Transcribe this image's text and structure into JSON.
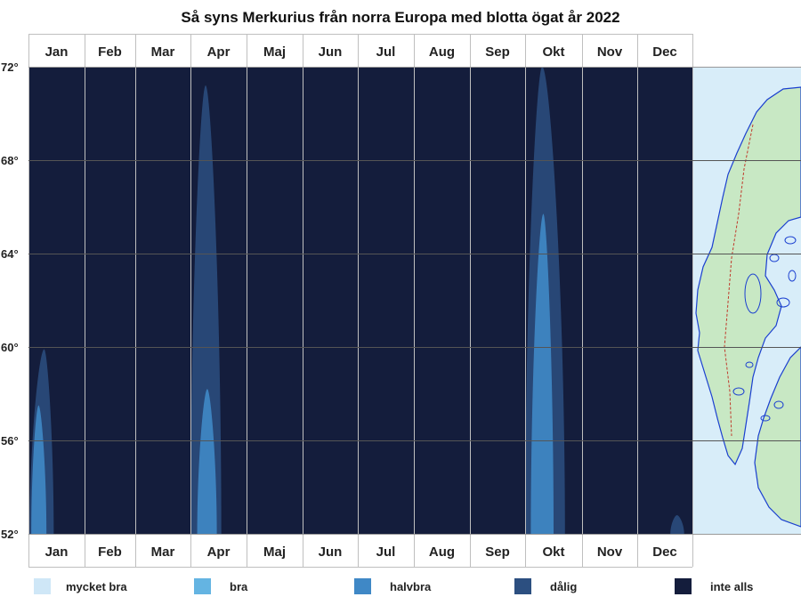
{
  "chart_data": {
    "type": "heatmap",
    "title": "Så syns Merkurius från norra Europa med blotta ögat år 2022",
    "x_categories": [
      "Jan",
      "Feb",
      "Mar",
      "Apr",
      "Maj",
      "Jun",
      "Jul",
      "Aug",
      "Sep",
      "Okt",
      "Nov",
      "Dec"
    ],
    "y_ticks": [
      "72°",
      "68°",
      "64°",
      "60°",
      "56°",
      "52°"
    ],
    "y_range": [
      52,
      72
    ],
    "grid": true,
    "legend_position": "bottom",
    "legend": [
      {
        "label": "mycket bra",
        "color": "#cfe7f7"
      },
      {
        "label": "bra",
        "color": "#64b4e2"
      },
      {
        "label": "halvbra",
        "color": "#3f88c6"
      },
      {
        "label": "dålig",
        "color": "#2c4f80"
      },
      {
        "label": "inte alls",
        "color": "#141d3c"
      }
    ],
    "visibility_regions": [
      {
        "level": "dålig",
        "month_start": 0.02,
        "month_end": 0.45,
        "lat_low": 52,
        "lat_high": 59.9,
        "peak_month": 0.28
      },
      {
        "level": "halvbra",
        "month_start": 0.05,
        "month_end": 0.32,
        "lat_low": 52,
        "lat_high": 57.5,
        "peak_month": 0.18
      },
      {
        "level": "dålig",
        "month_start": 3.0,
        "month_end": 3.55,
        "lat_low": 52,
        "lat_high": 71.2,
        "peak_month": 3.27
      },
      {
        "level": "halvbra",
        "month_start": 3.12,
        "month_end": 3.47,
        "lat_low": 52,
        "lat_high": 58.2,
        "peak_month": 3.3
      },
      {
        "level": "dålig",
        "month_start": 9.0,
        "month_end": 9.7,
        "lat_low": 52,
        "lat_high": 72,
        "peak_month": 9.3
      },
      {
        "level": "halvbra",
        "month_start": 9.1,
        "month_end": 9.5,
        "lat_low": 52,
        "lat_high": 65.7,
        "peak_month": 9.32
      },
      {
        "level": "dålig",
        "month_start": 11.6,
        "month_end": 11.85,
        "lat_low": 52,
        "lat_high": 52.8,
        "peak_month": 11.72
      }
    ],
    "map_colors": {
      "sea": "#d8edf9",
      "land": "#c8e8c4",
      "water": "#1a3fd0",
      "border": "#c0392b"
    }
  }
}
